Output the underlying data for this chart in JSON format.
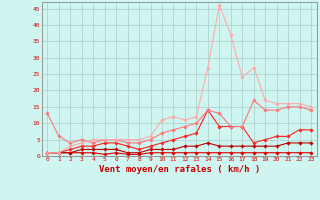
{
  "title": "",
  "xlabel": "Vent moyen/en rafales ( km/h )",
  "x_values": [
    0,
    1,
    2,
    3,
    4,
    5,
    6,
    7,
    8,
    9,
    10,
    11,
    12,
    13,
    14,
    15,
    16,
    17,
    18,
    19,
    20,
    21,
    22,
    23
  ],
  "series": [
    {
      "color": "#dd0000",
      "linewidth": 0.8,
      "marker": "D",
      "markersize": 1.8,
      "y": [
        1,
        1,
        1,
        1,
        1,
        0.5,
        1,
        0.5,
        0.5,
        1,
        1,
        1,
        1,
        1,
        1,
        1,
        1,
        1,
        1,
        1,
        1,
        1,
        1,
        1
      ]
    },
    {
      "color": "#bb0000",
      "linewidth": 0.8,
      "marker": "D",
      "markersize": 1.8,
      "y": [
        1,
        1,
        1,
        2,
        2,
        2,
        2,
        1,
        1,
        2,
        2,
        2,
        3,
        3,
        4,
        3,
        3,
        3,
        3,
        3,
        3,
        4,
        4,
        4
      ]
    },
    {
      "color": "#ff2222",
      "linewidth": 0.8,
      "marker": "D",
      "markersize": 1.8,
      "y": [
        1,
        1,
        2,
        3,
        3,
        4,
        4,
        3,
        2,
        3,
        4,
        5,
        6,
        7,
        14,
        9,
        9,
        9,
        4,
        5,
        6,
        6,
        8,
        8
      ]
    },
    {
      "color": "#ff7777",
      "linewidth": 0.8,
      "marker": "D",
      "markersize": 1.8,
      "y": [
        13,
        6,
        4,
        5,
        4,
        5,
        5,
        4,
        4,
        5,
        7,
        8,
        9,
        10,
        14,
        13,
        9,
        9,
        17,
        14,
        14,
        15,
        15,
        14
      ]
    },
    {
      "color": "#ffaaaa",
      "linewidth": 0.8,
      "marker": "D",
      "markersize": 1.8,
      "y": [
        1,
        1,
        3,
        4,
        5,
        5,
        5,
        5,
        5,
        6,
        11,
        12,
        11,
        12,
        27,
        46,
        37,
        24,
        27,
        17,
        16,
        16,
        16,
        15
      ]
    }
  ],
  "ylim": [
    0,
    47
  ],
  "yticks": [
    0,
    5,
    10,
    15,
    20,
    25,
    30,
    35,
    40,
    45
  ],
  "xticks": [
    0,
    1,
    2,
    3,
    4,
    5,
    6,
    7,
    8,
    9,
    10,
    11,
    12,
    13,
    14,
    15,
    16,
    17,
    18,
    19,
    20,
    21,
    22,
    23
  ],
  "bg_color": "#cef5f0",
  "grid_color": "#aacccc",
  "tick_color": "#dd0000",
  "label_color": "#cc0000",
  "spine_color": "#888888"
}
